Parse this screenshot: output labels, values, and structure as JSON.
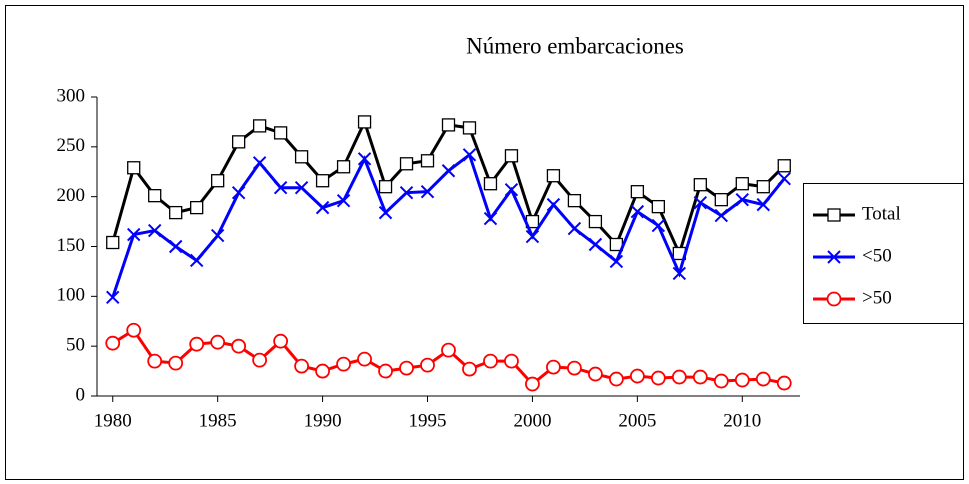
{
  "chart_data": {
    "type": "line",
    "title": "Número embarcaciones",
    "x": [
      1980,
      1981,
      1982,
      1983,
      1984,
      1985,
      1986,
      1987,
      1988,
      1989,
      1990,
      1991,
      1992,
      1993,
      1994,
      1995,
      1996,
      1997,
      1998,
      1999,
      2000,
      2001,
      2002,
      2003,
      2004,
      2005,
      2006,
      2007,
      2008,
      2009,
      2010,
      2011,
      2012
    ],
    "series": [
      {
        "name": "Total",
        "color": "#000000",
        "marker": "square",
        "values": [
          154,
          229,
          201,
          184,
          189,
          216,
          255,
          271,
          264,
          240,
          216,
          230,
          275,
          210,
          233,
          236,
          272,
          269,
          213,
          241,
          175,
          221,
          196,
          175,
          152,
          205,
          190,
          143,
          212,
          197,
          213,
          210,
          231
        ]
      },
      {
        "name": "<50",
        "color": "#0000ff",
        "marker": "x",
        "values": [
          99,
          162,
          166,
          150,
          136,
          161,
          204,
          234,
          209,
          209,
          189,
          196,
          238,
          184,
          204,
          205,
          226,
          242,
          178,
          207,
          160,
          192,
          168,
          152,
          135,
          185,
          171,
          123,
          194,
          181,
          197,
          192,
          218
        ]
      },
      {
        "name": ">50",
        "color": "#ff0000",
        "marker": "circle",
        "values": [
          53,
          66,
          35,
          33,
          52,
          54,
          50,
          36,
          55,
          30,
          25,
          32,
          37,
          25,
          28,
          31,
          46,
          27,
          35,
          35,
          12,
          29,
          28,
          22,
          17,
          20,
          18,
          19,
          19,
          15,
          16,
          17,
          13
        ]
      }
    ],
    "xlim": [
      1979.25,
      2012.75
    ],
    "xticks": [
      1980,
      1985,
      1990,
      1995,
      2000,
      2005,
      2010
    ],
    "ylim": [
      0,
      300
    ],
    "yticks": [
      0,
      50,
      100,
      150,
      200,
      250,
      300
    ],
    "legend": "right"
  }
}
